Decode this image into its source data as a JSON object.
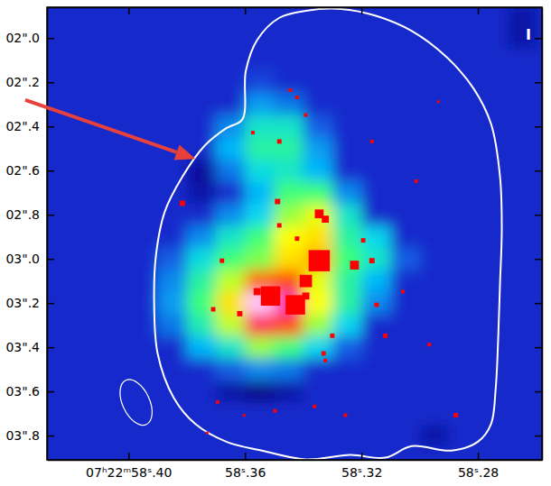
{
  "chart_data": {
    "type": "heatmap",
    "label": "I",
    "xlim": [
      58.428,
      58.258
    ],
    "ylim": [
      1.86,
      3.91
    ],
    "xticks": [
      {
        "value": 58.4,
        "label": "07ʰ22ᵐ58ˢ.40"
      },
      {
        "value": 58.36,
        "label": "58ˢ.36"
      },
      {
        "value": 58.32,
        "label": "58ˢ.32"
      },
      {
        "value": 58.28,
        "label": "58ˢ.28"
      }
    ],
    "yticks": [
      {
        "value": 2.0,
        "label": "02\".0"
      },
      {
        "value": 2.2,
        "label": "02\".2"
      },
      {
        "value": 2.4,
        "label": "02\".4"
      },
      {
        "value": 2.6,
        "label": "02\".6"
      },
      {
        "value": 2.8,
        "label": "02\".8"
      },
      {
        "value": 3.0,
        "label": "03\".0"
      },
      {
        "value": 3.2,
        "label": "03\".2"
      },
      {
        "value": 3.4,
        "label": "03\".4"
      },
      {
        "value": 3.6,
        "label": "03\".6"
      },
      {
        "value": 3.8,
        "label": "03\".8"
      }
    ],
    "zlim": [
      0,
      1
    ],
    "cells": {
      "x": [
        58.425,
        58.415,
        58.405,
        58.395,
        58.385,
        58.375,
        58.365,
        58.355,
        58.345,
        58.335,
        58.325,
        58.315,
        58.305,
        58.295,
        58.285,
        58.275,
        58.265
      ],
      "y": [
        1.9,
        2.0,
        2.1,
        2.2,
        2.3,
        2.4,
        2.5,
        2.6,
        2.7,
        2.8,
        2.9,
        3.0,
        3.1,
        3.2,
        3.3,
        3.4,
        3.5,
        3.6,
        3.7,
        3.8,
        3.9
      ],
      "z": [
        [
          0.18,
          0.18,
          0.18,
          0.18,
          0.18,
          0.18,
          0.18,
          0.18,
          0.18,
          0.18,
          0.18,
          0.18,
          0.18,
          0.18,
          0.18,
          0.18,
          0.12
        ],
        [
          0.18,
          0.18,
          0.18,
          0.18,
          0.18,
          0.18,
          0.18,
          0.18,
          0.18,
          0.18,
          0.18,
          0.18,
          0.18,
          0.18,
          0.18,
          0.18,
          0.12
        ],
        [
          0.18,
          0.18,
          0.18,
          0.18,
          0.18,
          0.18,
          0.18,
          0.18,
          0.18,
          0.18,
          0.18,
          0.18,
          0.18,
          0.18,
          0.18,
          0.18,
          0.18
        ],
        [
          0.18,
          0.18,
          0.18,
          0.18,
          0.18,
          0.18,
          0.18,
          0.22,
          0.18,
          0.18,
          0.18,
          0.18,
          0.18,
          0.18,
          0.18,
          0.18,
          0.18
        ],
        [
          0.18,
          0.18,
          0.18,
          0.18,
          0.18,
          0.18,
          0.18,
          0.32,
          0.28,
          0.18,
          0.18,
          0.18,
          0.18,
          0.18,
          0.18,
          0.18,
          0.18
        ],
        [
          0.18,
          0.18,
          0.18,
          0.18,
          0.18,
          0.18,
          0.3,
          0.45,
          0.45,
          0.25,
          0.18,
          0.18,
          0.18,
          0.18,
          0.18,
          0.18,
          0.18
        ],
        [
          0.18,
          0.18,
          0.18,
          0.18,
          0.18,
          0.18,
          0.35,
          0.5,
          0.5,
          0.32,
          0.18,
          0.18,
          0.18,
          0.18,
          0.18,
          0.18,
          0.18
        ],
        [
          0.18,
          0.18,
          0.18,
          0.18,
          0.18,
          0.1,
          0.28,
          0.42,
          0.45,
          0.35,
          0.18,
          0.18,
          0.18,
          0.18,
          0.18,
          0.18,
          0.18
        ],
        [
          0.18,
          0.18,
          0.18,
          0.18,
          0.18,
          0.12,
          0.18,
          0.35,
          0.55,
          0.55,
          0.3,
          0.18,
          0.18,
          0.18,
          0.18,
          0.18,
          0.18
        ],
        [
          0.18,
          0.18,
          0.18,
          0.18,
          0.18,
          0.18,
          0.3,
          0.4,
          0.62,
          0.68,
          0.45,
          0.18,
          0.18,
          0.18,
          0.18,
          0.18,
          0.18
        ],
        [
          0.18,
          0.18,
          0.18,
          0.18,
          0.18,
          0.3,
          0.45,
          0.55,
          0.7,
          0.72,
          0.5,
          0.4,
          0.18,
          0.18,
          0.18,
          0.18,
          0.18
        ],
        [
          0.18,
          0.18,
          0.18,
          0.18,
          0.25,
          0.42,
          0.55,
          0.6,
          0.72,
          0.75,
          0.55,
          0.45,
          0.25,
          0.18,
          0.18,
          0.18,
          0.18
        ],
        [
          0.18,
          0.18,
          0.18,
          0.18,
          0.3,
          0.5,
          0.65,
          0.8,
          0.82,
          0.68,
          0.5,
          0.35,
          0.18,
          0.18,
          0.18,
          0.18,
          0.18
        ],
        [
          0.18,
          0.18,
          0.18,
          0.18,
          0.32,
          0.55,
          0.72,
          1.0,
          0.95,
          0.7,
          0.5,
          0.3,
          0.18,
          0.18,
          0.18,
          0.18,
          0.18
        ],
        [
          0.18,
          0.18,
          0.18,
          0.18,
          0.28,
          0.48,
          0.65,
          0.9,
          0.82,
          0.62,
          0.4,
          0.18,
          0.18,
          0.18,
          0.18,
          0.18,
          0.18
        ],
        [
          0.18,
          0.18,
          0.18,
          0.18,
          0.18,
          0.35,
          0.45,
          0.62,
          0.55,
          0.4,
          0.25,
          0.18,
          0.18,
          0.18,
          0.18,
          0.18,
          0.18
        ],
        [
          0.18,
          0.18,
          0.18,
          0.18,
          0.18,
          0.18,
          0.25,
          0.3,
          0.28,
          0.18,
          0.18,
          0.18,
          0.18,
          0.18,
          0.18,
          0.18,
          0.18
        ],
        [
          0.18,
          0.18,
          0.18,
          0.18,
          0.18,
          0.18,
          0.12,
          0.08,
          0.12,
          0.18,
          0.18,
          0.18,
          0.18,
          0.18,
          0.18,
          0.18,
          0.18
        ],
        [
          0.18,
          0.18,
          0.18,
          0.18,
          0.18,
          0.18,
          0.18,
          0.18,
          0.18,
          0.18,
          0.18,
          0.18,
          0.18,
          0.18,
          0.18,
          0.18,
          0.18
        ],
        [
          0.18,
          0.18,
          0.18,
          0.18,
          0.18,
          0.18,
          0.18,
          0.18,
          0.18,
          0.18,
          0.18,
          0.18,
          0.18,
          0.12,
          0.18,
          0.18,
          0.18
        ],
        [
          0.18,
          0.18,
          0.18,
          0.18,
          0.18,
          0.18,
          0.18,
          0.18,
          0.18,
          0.18,
          0.18,
          0.18,
          0.18,
          0.18,
          0.18,
          0.18,
          0.18
        ]
      ]
    },
    "contour": {
      "color": "#ffffff",
      "x": [
        58.3609,
        58.3597,
        58.3558,
        58.3482,
        58.3391,
        58.327,
        58.3148,
        58.3027,
        58.2906,
        58.2815,
        58.2755,
        58.2724,
        58.2718,
        58.2724,
        58.273,
        58.2739,
        58.2755,
        58.28,
        58.2891,
        58.3027,
        58.3118,
        58.3239,
        58.3391,
        58.3542,
        58.3664,
        58.377,
        58.3845,
        58.39,
        58.3912,
        58.3906,
        58.3876,
        58.3815,
        58.3739,
        58.3664
      ],
      "y": [
        2.368,
        2.148,
        2.008,
        1.908,
        1.876,
        1.868,
        1.9,
        1.968,
        2.088,
        2.228,
        2.388,
        2.628,
        2.868,
        3.108,
        3.348,
        3.588,
        3.748,
        3.828,
        3.868,
        3.848,
        3.9,
        3.888,
        3.908,
        3.868,
        3.828,
        3.748,
        3.628,
        3.428,
        3.188,
        2.988,
        2.788,
        2.628,
        2.488,
        2.408
      ]
    },
    "sources": {
      "color": "#ff0000",
      "marker": "square",
      "x": [
        58.3512,
        58.3427,
        58.3345,
        58.3391,
        58.3558,
        58.3345,
        58.3324,
        58.3488,
        58.3482,
        58.3391,
        58.3445,
        58.3815,
        58.3679,
        58.3709,
        58.3618,
        58.3224,
        58.3164,
        58.3194,
        58.3148,
        58.333,
        58.3324,
        58.3118,
        58.3058,
        58.2967,
        58.2876,
        58.3497,
        58.3361,
        58.3603,
        58.3694,
        58.373,
        58.3573,
        58.3482,
        58.3421,
        58.3391,
        58.33,
        58.3255,
        58.3012,
        58.3164,
        58.2936,
        58.3421
      ],
      "y": [
        3.168,
        3.208,
        3.008,
        3.1,
        3.148,
        2.796,
        2.82,
        2.74,
        2.468,
        2.348,
        2.236,
        2.748,
        3.008,
        3.228,
        3.248,
        3.028,
        3.008,
        2.916,
        3.208,
        3.428,
        3.46,
        3.348,
        3.148,
        3.388,
        3.708,
        3.688,
        3.668,
        3.708,
        3.648,
        3.788,
        2.428,
        2.848,
        2.908,
        3.168,
        3.348,
        3.708,
        2.648,
        2.468,
        2.288,
        2.268
      ],
      "size": [
        0.088,
        0.088,
        0.096,
        0.056,
        0.032,
        0.04,
        0.032,
        0.024,
        0.02,
        0.016,
        0.016,
        0.024,
        0.02,
        0.02,
        0.024,
        0.04,
        0.024,
        0.02,
        0.02,
        0.02,
        0.016,
        0.02,
        0.016,
        0.016,
        0.02,
        0.016,
        0.016,
        0.012,
        0.016,
        0.012,
        0.016,
        0.02,
        0.02,
        0.032,
        0.02,
        0.016,
        0.016,
        0.016,
        0.012,
        0.016
      ]
    }
  }
}
